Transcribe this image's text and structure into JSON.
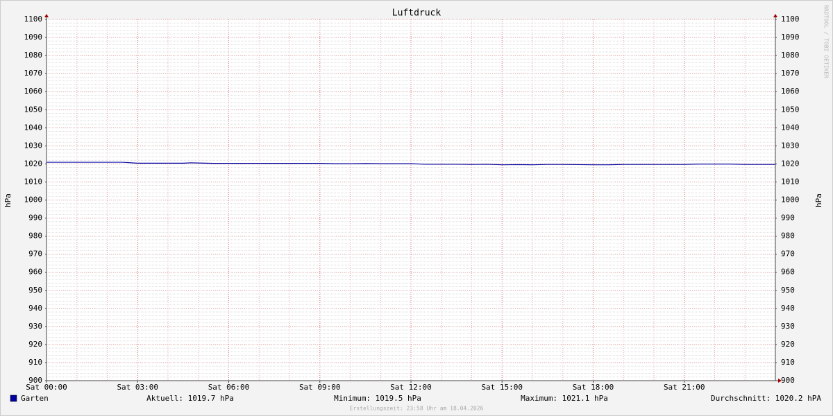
{
  "chart_data": {
    "type": "line",
    "title": "Luftdruck",
    "y_label": "hPa",
    "x": [
      0,
      0.5,
      1,
      1.5,
      2,
      2.5,
      3,
      3.5,
      4,
      4.5,
      4.75,
      5,
      5.5,
      6,
      6.5,
      7,
      7.5,
      8,
      8.5,
      9,
      9.5,
      10,
      10.5,
      11,
      11.5,
      12,
      12.5,
      13,
      13.5,
      14,
      14.5,
      15,
      15.5,
      16,
      16.5,
      17,
      17.5,
      18,
      18.5,
      19,
      19.5,
      20,
      20.5,
      21,
      21.5,
      22,
      22.5,
      23,
      23.5,
      24
    ],
    "series": [
      {
        "name": "Garten",
        "color": "#0000a0",
        "values": [
          1020.9,
          1020.9,
          1020.9,
          1020.9,
          1020.9,
          1020.9,
          1020.4,
          1020.4,
          1020.4,
          1020.4,
          1020.6,
          1020.5,
          1020.3,
          1020.3,
          1020.3,
          1020.3,
          1020.3,
          1020.3,
          1020.3,
          1020.3,
          1020.1,
          1020.1,
          1020.2,
          1020.1,
          1020.1,
          1020.1,
          1019.8,
          1019.8,
          1019.8,
          1019.7,
          1019.8,
          1019.5,
          1019.6,
          1019.5,
          1019.7,
          1019.7,
          1019.6,
          1019.5,
          1019.5,
          1019.7,
          1019.7,
          1019.7,
          1019.7,
          1019.7,
          1019.9,
          1019.9,
          1019.9,
          1019.7,
          1019.7,
          1019.7
        ]
      }
    ],
    "xlim": [
      0,
      24
    ],
    "xticks": [
      {
        "value": 0,
        "label": "Sat 00:00"
      },
      {
        "value": 3,
        "label": "Sat 03:00"
      },
      {
        "value": 6,
        "label": "Sat 06:00"
      },
      {
        "value": 9,
        "label": "Sat 09:00"
      },
      {
        "value": 12,
        "label": "Sat 12:00"
      },
      {
        "value": 15,
        "label": "Sat 15:00"
      },
      {
        "value": 18,
        "label": "Sat 18:00"
      },
      {
        "value": 21,
        "label": "Sat 21:00"
      }
    ],
    "ylim": [
      900,
      1100
    ],
    "yticks": [
      900,
      910,
      920,
      930,
      940,
      950,
      960,
      970,
      980,
      990,
      1000,
      1010,
      1020,
      1030,
      1040,
      1050,
      1060,
      1070,
      1080,
      1090,
      1100
    ],
    "minor_grid": {
      "x": 1,
      "y": 2
    },
    "grid": true,
    "stats": [
      "Aktuell: 1019.7 hPa",
      "Minimum: 1019.5 hPa",
      "Maximum: 1021.1 hPa",
      "Durchschnitt: 1020.2 hPA"
    ],
    "watermark": "RRDTOOL / TOBI OETIKER",
    "footer": "Erstellungszeit: 23:58 Uhr am 18.04.2026"
  }
}
